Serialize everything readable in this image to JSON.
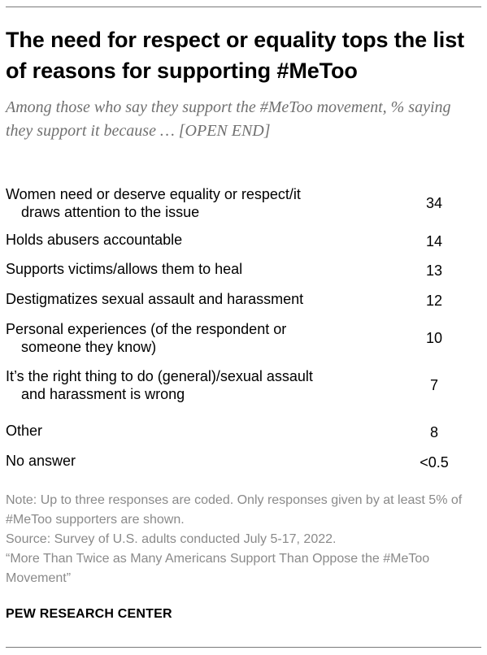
{
  "title": "The need for respect or equality tops the list of reasons for supporting #MeToo",
  "subtitle": "Among those who say they support the #MeToo movement, % saying they support it because … [OPEN END]",
  "chart_data": {
    "type": "table",
    "title": "The need for respect or equality tops the list of reasons for supporting #MeToo",
    "rows": [
      {
        "label_lines": [
          "Women need or deserve equality or respect/it",
          "draws attention to the issue"
        ],
        "value": "34"
      },
      {
        "label_lines": [
          "Holds abusers accountable"
        ],
        "value": "14"
      },
      {
        "label_lines": [
          "Supports victims/allows them to heal"
        ],
        "value": "13"
      },
      {
        "label_lines": [
          "Destigmatizes sexual assault and harassment"
        ],
        "value": "12"
      },
      {
        "label_lines": [
          "Personal experiences (of the respondent or",
          "someone they know)"
        ],
        "value": "10"
      },
      {
        "label_lines": [
          "It’s the right thing to do (general)/sexual assault",
          "and harassment is wrong"
        ],
        "value": "7"
      },
      {
        "label_lines": [
          "Other"
        ],
        "value": "8"
      },
      {
        "label_lines": [
          "No answer"
        ],
        "value": "<0.5"
      }
    ]
  },
  "notes": {
    "note": "Note: Up to three responses are coded. Only responses given by at least 5% of #MeToo supporters are shown.",
    "source": "Source: Survey of U.S. adults conducted July 5-17, 2022.",
    "report": "“More Than Twice as Many Americans Support Than Oppose the #MeToo Movement”"
  },
  "brand": "PEW RESEARCH CENTER"
}
